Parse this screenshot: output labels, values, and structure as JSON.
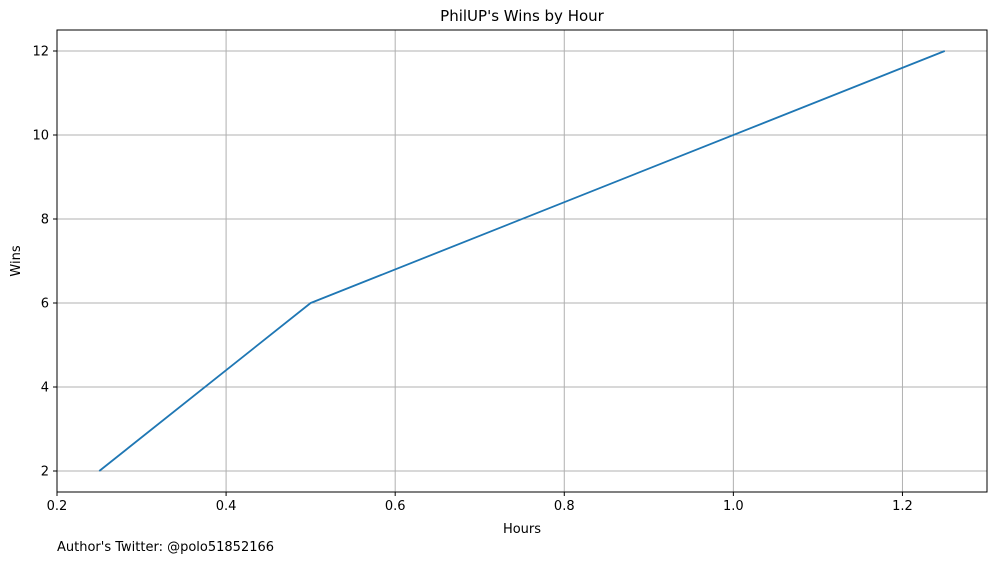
{
  "chart_data": {
    "type": "line",
    "title": "PhilUP's Wins by Hour",
    "xlabel": "Hours",
    "ylabel": "Wins",
    "x": [
      0.25,
      0.5,
      1.25
    ],
    "series": [
      {
        "values": [
          2,
          6,
          12
        ],
        "color": "#1f77b4"
      }
    ],
    "xlim": [
      0.2,
      1.3
    ],
    "ylim": [
      1.5,
      12.5
    ],
    "xticks": [
      0.2,
      0.4,
      0.6,
      0.8,
      1.0,
      1.2
    ],
    "xtick_labels": [
      "0.2",
      "0.4",
      "0.6",
      "0.8",
      "1.0",
      "1.2"
    ],
    "yticks": [
      2,
      4,
      6,
      8,
      10,
      12
    ],
    "ytick_labels": [
      "2",
      "4",
      "6",
      "8",
      "10",
      "12"
    ],
    "grid": true,
    "legend": "none"
  },
  "footer": {
    "note": "Author's Twitter: @polo51852166"
  }
}
